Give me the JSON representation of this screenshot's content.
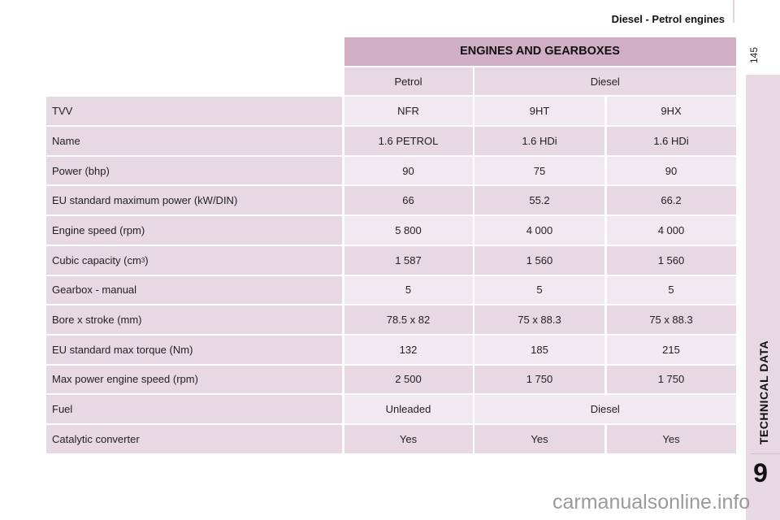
{
  "header": {
    "title": "Diesel - Petrol engines",
    "page_number": "145"
  },
  "sidebar": {
    "section": "TECHNICAL DATA",
    "chapter": "9"
  },
  "watermark": "carmanualsonline.info",
  "table": {
    "title": "ENGINES AND GEARBOXES",
    "groups": [
      "Petrol",
      "Diesel"
    ],
    "rows": [
      {
        "label": "TVV",
        "values": [
          "NFR",
          "9HT",
          "9HX"
        ]
      },
      {
        "label": "Name",
        "values": [
          "1.6 PETROL",
          "1.6 HDi",
          "1.6 HDi"
        ]
      },
      {
        "label": "Power (bhp)",
        "values": [
          "90",
          "75",
          "90"
        ]
      },
      {
        "label": "EU standard maximum power (kW/DIN)",
        "values": [
          "66",
          "55.2",
          "66.2"
        ]
      },
      {
        "label": "Engine speed (rpm)",
        "values": [
          "5 800",
          "4 000",
          "4 000"
        ]
      },
      {
        "label": "Cubic capacity (cm",
        "label_sup": "3",
        "label_end": ")",
        "values": [
          "1 587",
          "1 560",
          "1 560"
        ]
      },
      {
        "label": "Gearbox - manual",
        "values": [
          "5",
          "5",
          "5"
        ]
      },
      {
        "label": "Bore x stroke (mm)",
        "values": [
          "78.5 x 82",
          "75 x 88.3",
          "75 x 88.3"
        ]
      },
      {
        "label": "EU standard max torque (Nm)",
        "values": [
          "132",
          "185",
          "215"
        ]
      },
      {
        "label": "Max power engine speed (rpm)",
        "values": [
          "2 500",
          "1 750",
          "1 750"
        ]
      },
      {
        "label": "Fuel",
        "values": [
          "Unleaded",
          "Diesel"
        ]
      },
      {
        "label": "Catalytic converter",
        "values": [
          "Yes",
          "Yes",
          "Yes"
        ]
      }
    ]
  }
}
